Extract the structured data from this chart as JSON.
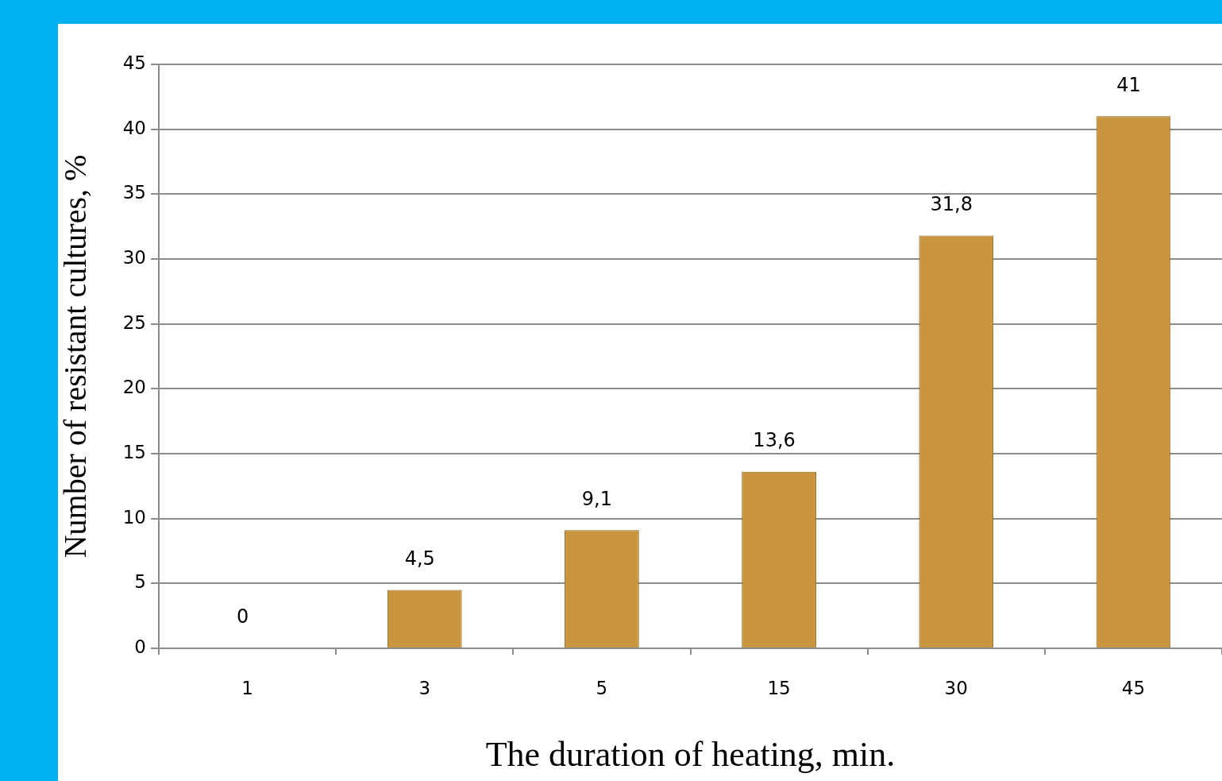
{
  "chart_data": {
    "type": "bar",
    "xlabel": "The duration of heating, min.",
    "ylabel": "Number of resistant cultures, %",
    "categories": [
      "1",
      "3",
      "5",
      "15",
      "30",
      "45"
    ],
    "values": [
      0,
      4.5,
      9.1,
      13.6,
      31.8,
      41
    ],
    "value_labels": [
      "0",
      "4,5",
      "9,1",
      "13,6",
      "31,8",
      "41"
    ],
    "color": "#c9963f",
    "ylim": [
      0,
      45
    ],
    "yticks": [
      0,
      5,
      10,
      15,
      20,
      25,
      30,
      35,
      40,
      45
    ],
    "grid": "y",
    "legend": false
  }
}
